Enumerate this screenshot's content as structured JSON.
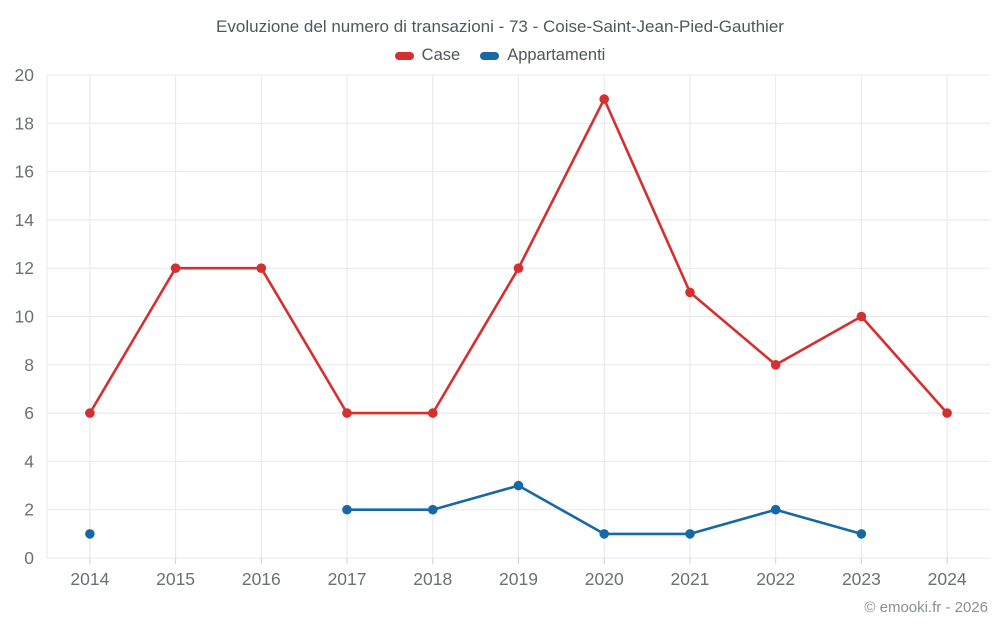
{
  "chart_data": {
    "type": "line",
    "title": "Evoluzione del numero di transazioni - 73 - Coise-Saint-Jean-Pied-Gauthier",
    "credits": "© emooki.fr - 2026",
    "x": [
      2014,
      2015,
      2016,
      2017,
      2018,
      2019,
      2020,
      2021,
      2022,
      2023,
      2024
    ],
    "series": [
      {
        "name": "Case",
        "color": "#d5302f",
        "values": [
          6,
          12,
          12,
          6,
          6,
          12,
          19,
          11,
          8,
          10,
          6
        ]
      },
      {
        "name": "Appartamenti",
        "color": "#1769a5",
        "values": [
          1,
          null,
          null,
          2,
          2,
          3,
          1,
          1,
          2,
          1,
          null
        ]
      }
    ],
    "xlabel": "",
    "ylabel": "",
    "ylim": [
      0,
      20
    ],
    "ytick_step": 2,
    "grid": true,
    "legend_position": "top",
    "colors": {
      "gridline": "#e8e8e8",
      "tick_mark": "#ccd0d4",
      "background": "#ffffff"
    }
  }
}
